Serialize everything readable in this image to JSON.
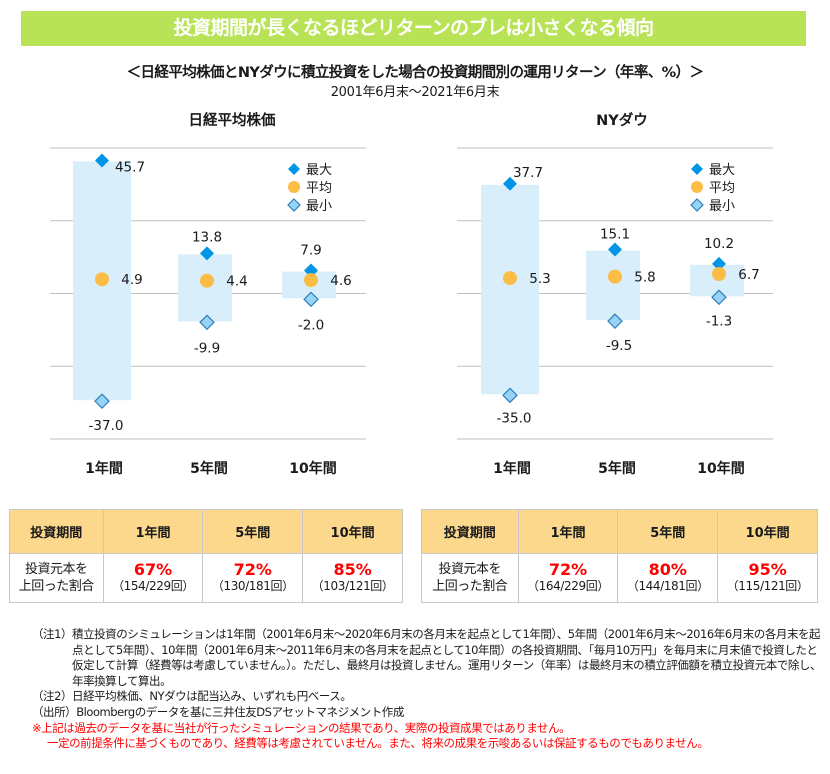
{
  "banner": "投資期間が長くなるほどリターンのブレは小さくなる傾向",
  "subtitle": "＜日経平均株価とNYダウに積立投資をした場合の投資期間別の運用リターン（年率、%）＞",
  "period": "2001年6月末～2021年6月末",
  "colors": {
    "banner_bg": "#b9e356",
    "range_bar": "#d9eefb",
    "max_marker": "#0095e6",
    "avg_marker": "#fbbd45",
    "min_marker_fill": "#97d3f7",
    "min_marker_stroke": "#2f7fb8",
    "gridline": "#bfbfbf",
    "table_header_bg": "#fbd88c",
    "highlight_red": "#ff0000"
  },
  "chart_data": [
    {
      "type": "range-dot",
      "title": "日経平均株価",
      "categories": [
        "1年間",
        "5年間",
        "10年間"
      ],
      "series": [
        {
          "name": "最大",
          "values": [
            45.7,
            13.8,
            7.9
          ]
        },
        {
          "name": "平均",
          "values": [
            4.9,
            4.4,
            4.6
          ]
        },
        {
          "name": "最小",
          "values": [
            -37.0,
            -9.9,
            -2.0
          ]
        }
      ],
      "ylim": [
        -50,
        50
      ],
      "yticks": [
        -50,
        -25,
        0,
        25,
        50
      ],
      "grid": true,
      "ylabel": "",
      "xlabel": "",
      "legend": "top-right"
    },
    {
      "type": "range-dot",
      "title": "NYダウ",
      "categories": [
        "1年間",
        "5年間",
        "10年間"
      ],
      "series": [
        {
          "name": "最大",
          "values": [
            37.7,
            15.1,
            10.2
          ]
        },
        {
          "name": "平均",
          "values": [
            5.3,
            5.8,
            6.7
          ]
        },
        {
          "name": "最小",
          "values": [
            -35.0,
            -9.5,
            -1.3
          ]
        }
      ],
      "ylim": [
        -50,
        50
      ],
      "yticks": [
        -50,
        -25,
        0,
        25,
        50
      ],
      "grid": true,
      "ylabel": "",
      "xlabel": "",
      "legend": "top-right"
    }
  ],
  "tables": [
    {
      "header": [
        "投資期間",
        "1年間",
        "5年間",
        "10年間"
      ],
      "row_label_line1": "投資元本を",
      "row_label_line2": "上回った割合",
      "cells": [
        {
          "pct": "67%",
          "count": "（154/229回）"
        },
        {
          "pct": "72%",
          "count": "（130/181回）"
        },
        {
          "pct": "85%",
          "count": "（103/121回）"
        }
      ]
    },
    {
      "header": [
        "投資期間",
        "1年間",
        "5年間",
        "10年間"
      ],
      "row_label_line1": "投資元本を",
      "row_label_line2": "上回った割合",
      "cells": [
        {
          "pct": "72%",
          "count": "（164/229回）"
        },
        {
          "pct": "80%",
          "count": "（144/181回）"
        },
        {
          "pct": "95%",
          "count": "（115/121回）"
        }
      ]
    }
  ],
  "notes": {
    "note1_tag": "（注1）",
    "note1_text": "積立投資のシミュレーションは1年間（2001年6月末～2020年6月末の各月末を起点として1年間）、5年間（2001年6月末～2016年6月末の各月末を起点として5年間）、10年間（2001年6月末～2011年6月末の各月末を起点として10年間）の各投資期間、「毎月10万円」を毎月末に月末値で投資したと仮定して計算（経費等は考慮していません。）。ただし、最終月は投資しません。運用リターン（年率）は最終月末の積立評価額を積立投資元本で除し、年率換算して算出。",
    "note2_tag": "（注2）",
    "note2_text": "日経平均株価、NYダウは配当込み、いずれも円ベース。",
    "source_tag": "（出所）",
    "source_text": "Bloombergのデータを基に三井住友DSアセットマネジメント作成",
    "warning_line1": "※上記は過去のデータを基に当社が行ったシミュレーションの結果であり、実際の投資成果ではありません。",
    "warning_line2": "一定の前提条件に基づくものであり、経費等は考慮されていません。また、将来の成果を示唆あるいは保証するものでもありません。"
  }
}
